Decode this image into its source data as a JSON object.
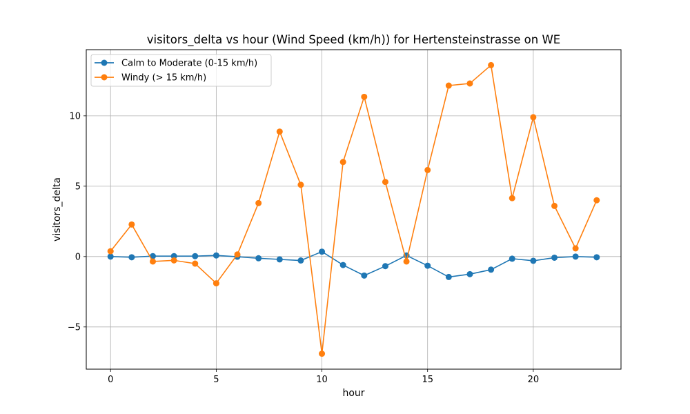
{
  "chart_data": {
    "type": "line",
    "title": "visitors_delta vs hour (Wind Speed (km/h)) for Hertensteinstrasse on WE",
    "xlabel": "hour",
    "ylabel": "visitors_delta",
    "x": [
      0,
      1,
      2,
      3,
      4,
      5,
      6,
      7,
      8,
      9,
      10,
      11,
      12,
      13,
      14,
      15,
      16,
      17,
      18,
      19,
      20,
      21,
      22,
      23
    ],
    "xlim": [
      -1.15,
      24.15
    ],
    "ylim": [
      -8.0,
      14.7
    ],
    "xticks": [
      0,
      5,
      10,
      15,
      20
    ],
    "yticks": [
      -5,
      0,
      5,
      10
    ],
    "ytick_labels": [
      "−5",
      "0",
      "5",
      "10"
    ],
    "grid": true,
    "legend_position": "top-left",
    "series": [
      {
        "name": "Calm to Moderate (0-15 km/h)",
        "color": "#1f77b4",
        "values": [
          0.0,
          -0.05,
          0.03,
          0.03,
          0.03,
          0.08,
          -0.01,
          -0.12,
          -0.2,
          -0.28,
          0.35,
          -0.6,
          -1.35,
          -0.68,
          0.08,
          -0.65,
          -1.45,
          -1.25,
          -0.93,
          -0.15,
          -0.3,
          -0.08,
          0.0,
          -0.05
        ]
      },
      {
        "name": "Windy (> 15 km/h)",
        "color": "#ff7f0e",
        "values": [
          0.38,
          2.28,
          -0.35,
          -0.27,
          -0.5,
          -1.9,
          0.15,
          3.8,
          8.88,
          5.1,
          -6.9,
          6.72,
          11.35,
          5.3,
          -0.35,
          6.15,
          12.15,
          12.3,
          13.6,
          4.15,
          9.9,
          3.6,
          0.58,
          4.0
        ]
      }
    ]
  }
}
